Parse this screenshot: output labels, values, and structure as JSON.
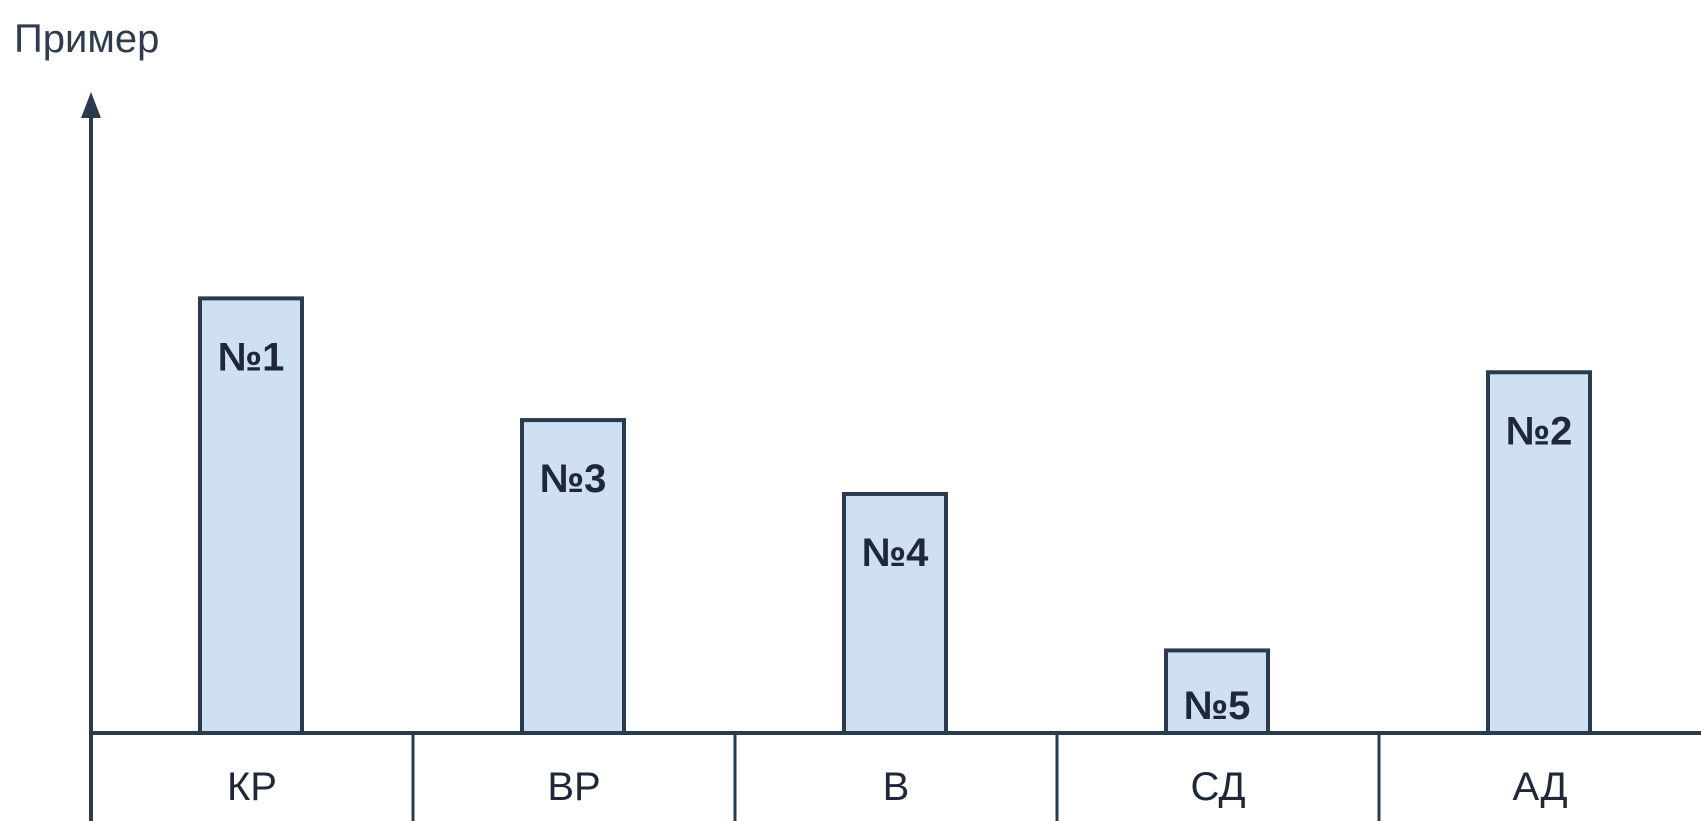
{
  "chart_data": {
    "type": "bar",
    "ylabel": "Пример",
    "xlabel": "",
    "categories": [
      "КР",
      "ВР",
      "В",
      "СД",
      "АД"
    ],
    "values": [
      10,
      7.2,
      5.5,
      1.9,
      8.3
    ],
    "bar_labels": [
      "№1",
      "№3",
      "№4",
      "№5",
      "№2"
    ],
    "ylim": [
      0,
      13
    ],
    "grid": false,
    "legend": "none",
    "colors": {
      "bar_fill": "#cfe0f2",
      "bar_stroke": "#2a3a4f",
      "axis": "#2a3a4f"
    }
  }
}
